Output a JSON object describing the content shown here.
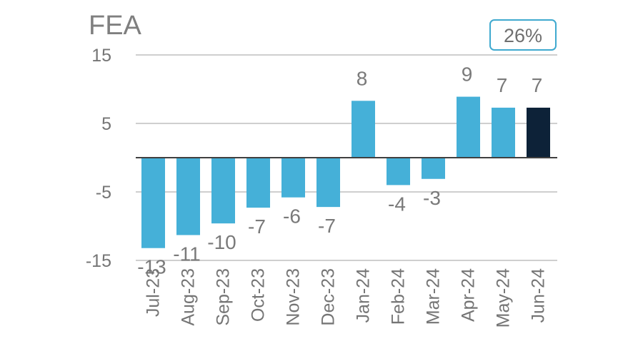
{
  "chart_data": {
    "type": "bar",
    "title": "FEA",
    "badge": "26%",
    "categories": [
      "Jul-23",
      "Aug-23",
      "Sep-23",
      "Oct-23",
      "Nov-23",
      "Dec-23",
      "Jan-24",
      "Feb-24",
      "Mar-24",
      "Apr-24",
      "May-24",
      "Jun-24"
    ],
    "values": [
      -13.2,
      -11.3,
      -9.6,
      -7.3,
      -5.8,
      -7.2,
      8.3,
      -4.0,
      -3.1,
      8.9,
      7.3,
      7.3
    ],
    "data_labels": [
      "-13",
      "-11",
      "-10",
      "-7",
      "-6",
      "-7",
      "8",
      "-4",
      "-3",
      "9",
      "7",
      "7"
    ],
    "yticks": [
      15,
      5,
      -5,
      -15
    ],
    "ytick_labels": [
      "15",
      "5",
      "-5",
      "-15"
    ],
    "ylim": [
      -15,
      15
    ],
    "xlabel": "",
    "ylabel": "",
    "grid": true,
    "bar_color": "#45b0d8",
    "highlight_color": "#0d2238",
    "highlight_index": 11,
    "zero_line_color": "#404040",
    "grid_color": "#cfcfcf",
    "badge_border_color": "#3fa9cf"
  }
}
